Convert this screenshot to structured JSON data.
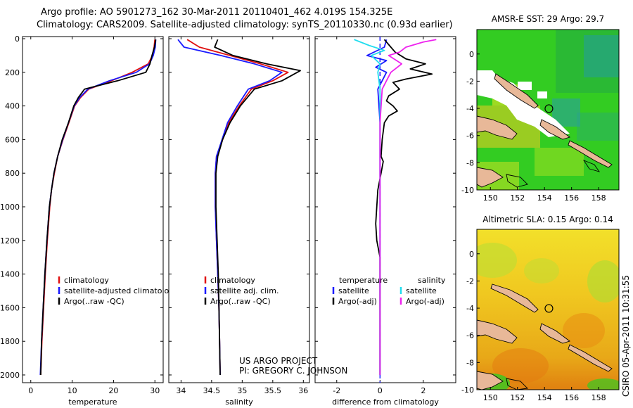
{
  "header": {
    "title_line1": "Argo profile: AO 5901273_162 30-Mar-2011 20110401_462 4.019S 154.325E",
    "title_line2": "Climatology: CARS2009. Satellite-adjusted climatology: synTS_20110330.nc (0.93d earlier)"
  },
  "footer": {
    "project_line1": "US ARGO PROJECT",
    "project_line2": "PI: GREGORY C. JOHNSON",
    "csiro_stamp": "CSIRO 05-Apr-2011 10:31:55"
  },
  "colors": {
    "climatology": "#e01010",
    "satellite": "#1a1aff",
    "argo": "#000000",
    "salinity_satellite": "#22ddee",
    "salinity_argo": "#ee22ee",
    "land": "#e8b898",
    "sea_green": "#33cc22",
    "sea_yellow": "#eecc22"
  },
  "chart_data": [
    {
      "type": "line",
      "id": "temperature",
      "xlabel": "temperature",
      "ylabel": "",
      "xlim": [
        -2,
        32
      ],
      "ylim": [
        2100,
        0
      ],
      "xticks": [
        0,
        10,
        20,
        30
      ],
      "yticks": [
        0,
        200,
        400,
        600,
        800,
        1000,
        1200,
        1400,
        1600,
        1800,
        2000
      ],
      "legend": [
        "climatology",
        "satellite-adjusted climatology",
        "Argo(..raw -QC)"
      ],
      "legend_placement": "lower-right",
      "series": [
        {
          "name": "climatology",
          "color": "#e01010",
          "points": [
            [
              30,
              5
            ],
            [
              29.8,
              50
            ],
            [
              29.4,
              100
            ],
            [
              28.4,
              150
            ],
            [
              24.5,
              200
            ],
            [
              19.5,
              250
            ],
            [
              14,
              300
            ],
            [
              12,
              350
            ],
            [
              10.6,
              400
            ],
            [
              9.2,
              500
            ],
            [
              7.8,
              600
            ],
            [
              6.5,
              700
            ],
            [
              5.7,
              800
            ],
            [
              5,
              900
            ],
            [
              4.6,
              1000
            ],
            [
              4,
              1200
            ],
            [
              3.5,
              1400
            ],
            [
              3.1,
              1600
            ],
            [
              2.7,
              1800
            ],
            [
              2.4,
              2000
            ]
          ]
        },
        {
          "name": "satellite-adjusted climatology",
          "color": "#1a1aff",
          "points": [
            [
              30.2,
              5
            ],
            [
              30.1,
              50
            ],
            [
              29.6,
              100
            ],
            [
              28.7,
              150
            ],
            [
              25.5,
              200
            ],
            [
              19,
              250
            ],
            [
              13.8,
              300
            ],
            [
              11.8,
              350
            ],
            [
              10.5,
              400
            ],
            [
              9.1,
              500
            ],
            [
              7.7,
              600
            ],
            [
              6.5,
              700
            ],
            [
              5.6,
              800
            ],
            [
              5,
              900
            ],
            [
              4.5,
              1000
            ],
            [
              3.9,
              1200
            ],
            [
              3.4,
              1400
            ],
            [
              3,
              1600
            ],
            [
              2.6,
              1800
            ],
            [
              2.3,
              2000
            ]
          ]
        },
        {
          "name": "Argo(..raw -QC)",
          "color": "#000000",
          "points": [
            [
              30.2,
              5
            ],
            [
              29.9,
              50
            ],
            [
              29.3,
              100
            ],
            [
              28.8,
              150
            ],
            [
              27.8,
              200
            ],
            [
              21,
              250
            ],
            [
              13,
              300
            ],
            [
              11.5,
              350
            ],
            [
              10.4,
              400
            ],
            [
              9.1,
              500
            ],
            [
              7.6,
              600
            ],
            [
              6.5,
              700
            ],
            [
              5.6,
              800
            ],
            [
              5,
              900
            ],
            [
              4.5,
              1000
            ],
            [
              3.9,
              1200
            ],
            [
              3.4,
              1400
            ],
            [
              3,
              1600
            ],
            [
              2.6,
              1800
            ],
            [
              2.4,
              2000
            ]
          ]
        }
      ]
    },
    {
      "type": "line",
      "id": "salinity",
      "xlabel": "salinity",
      "ylabel": "",
      "xlim": [
        33.8,
        36.1
      ],
      "ylim": [
        2100,
        0
      ],
      "xticks": [
        34,
        34.5,
        35,
        35.5,
        36
      ],
      "yticks": [
        0,
        200,
        400,
        600,
        800,
        1000,
        1200,
        1400,
        1600,
        1800,
        2000
      ],
      "legend": [
        "climatology",
        "satellite adj. clim.",
        "Argo(..raw -QC)"
      ],
      "legend_placement": "lower-right",
      "series": [
        {
          "name": "climatology",
          "color": "#e01010",
          "points": [
            [
              34.1,
              5
            ],
            [
              34.3,
              50
            ],
            [
              34.8,
              100
            ],
            [
              35.3,
              150
            ],
            [
              35.75,
              200
            ],
            [
              35.5,
              250
            ],
            [
              35.15,
              300
            ],
            [
              34.95,
              400
            ],
            [
              34.78,
              500
            ],
            [
              34.68,
              600
            ],
            [
              34.58,
              700
            ],
            [
              34.56,
              800
            ],
            [
              34.56,
              1000
            ],
            [
              34.58,
              1200
            ],
            [
              34.6,
              1400
            ],
            [
              34.62,
              1600
            ],
            [
              34.63,
              1800
            ],
            [
              34.64,
              2000
            ]
          ]
        },
        {
          "name": "satellite adj. clim.",
          "color": "#1a1aff",
          "points": [
            [
              33.95,
              5
            ],
            [
              34.05,
              50
            ],
            [
              34.65,
              100
            ],
            [
              35.2,
              150
            ],
            [
              35.65,
              200
            ],
            [
              35.45,
              250
            ],
            [
              35.1,
              300
            ],
            [
              34.92,
              400
            ],
            [
              34.76,
              500
            ],
            [
              34.67,
              600
            ],
            [
              34.58,
              700
            ],
            [
              34.56,
              800
            ],
            [
              34.56,
              1000
            ],
            [
              34.58,
              1200
            ],
            [
              34.6,
              1400
            ],
            [
              34.62,
              1600
            ],
            [
              34.63,
              1800
            ],
            [
              34.64,
              2000
            ]
          ]
        },
        {
          "name": "Argo(..raw -QC)",
          "color": "#000000",
          "points": [
            [
              34.6,
              5
            ],
            [
              34.55,
              50
            ],
            [
              34.85,
              100
            ],
            [
              35.4,
              150
            ],
            [
              35.95,
              190
            ],
            [
              35.65,
              250
            ],
            [
              35.2,
              300
            ],
            [
              34.97,
              400
            ],
            [
              34.8,
              500
            ],
            [
              34.68,
              600
            ],
            [
              34.6,
              700
            ],
            [
              34.57,
              800
            ],
            [
              34.57,
              1000
            ],
            [
              34.59,
              1200
            ],
            [
              34.61,
              1400
            ],
            [
              34.62,
              1600
            ],
            [
              34.63,
              1800
            ],
            [
              34.64,
              2000
            ]
          ]
        }
      ]
    },
    {
      "type": "line",
      "id": "difference",
      "xlabel": "difference from climatology",
      "ylabel": "",
      "xlim": [
        -3,
        3.5
      ],
      "ylim": [
        2100,
        0
      ],
      "xticks": [
        -2,
        0,
        2
      ],
      "yticks": [
        0,
        200,
        400,
        600,
        800,
        1000,
        1200,
        1400,
        1600,
        1800,
        2000
      ],
      "legend_groups": [
        {
          "heading": "temperature",
          "items": [
            "satellite",
            "Argo(-adj)"
          ]
        },
        {
          "heading": "salinity",
          "items": [
            "satellite",
            "Argo(-adj)"
          ]
        }
      ],
      "legend_placement": "lower-center",
      "series": [
        {
          "name": "temperature satellite",
          "color": "#1a1aff",
          "points": [
            [
              0.3,
              5
            ],
            [
              0.2,
              50
            ],
            [
              -0.6,
              100
            ],
            [
              0.3,
              130
            ],
            [
              -0.2,
              170
            ],
            [
              0.3,
              200
            ],
            [
              0.1,
              250
            ],
            [
              -0.1,
              300
            ],
            [
              -0.05,
              400
            ],
            [
              0,
              500
            ],
            [
              0,
              700
            ],
            [
              0,
              1000
            ],
            [
              0,
              1500
            ],
            [
              0,
              2000
            ]
          ]
        },
        {
          "name": "temperature Argo(-adj)",
          "color": "#000000",
          "points": [
            [
              0.2,
              5
            ],
            [
              0.5,
              50
            ],
            [
              0.7,
              80
            ],
            [
              1.2,
              120
            ],
            [
              2.1,
              150
            ],
            [
              1.4,
              180
            ],
            [
              2.4,
              210
            ],
            [
              1.2,
              240
            ],
            [
              0.6,
              260
            ],
            [
              0.9,
              300
            ],
            [
              0.4,
              340
            ],
            [
              0.3,
              370
            ],
            [
              0.6,
              400
            ],
            [
              0.8,
              430
            ],
            [
              0.4,
              460
            ],
            [
              0.2,
              500
            ],
            [
              0.1,
              600
            ],
            [
              0.05,
              700
            ],
            [
              0.15,
              730
            ],
            [
              0.05,
              800
            ],
            [
              -0.1,
              900
            ],
            [
              -0.15,
              1000
            ],
            [
              -0.2,
              1100
            ],
            [
              -0.15,
              1200
            ],
            [
              0,
              1300
            ],
            [
              0,
              2000
            ]
          ]
        },
        {
          "name": "salinity satellite",
          "color": "#22ddee",
          "points": [
            [
              -1.2,
              5
            ],
            [
              -0.5,
              40
            ],
            [
              0.2,
              70
            ],
            [
              -0.4,
              100
            ],
            [
              0,
              150
            ],
            [
              -0.1,
              200
            ],
            [
              0,
              300
            ],
            [
              0,
              600
            ],
            [
              0,
              1000
            ],
            [
              0,
              1500
            ],
            [
              0,
              2000
            ]
          ]
        },
        {
          "name": "salinity Argo(-adj)",
          "color": "#ee22ee",
          "points": [
            [
              2.6,
              5
            ],
            [
              2,
              20
            ],
            [
              1.2,
              50
            ],
            [
              0.9,
              80
            ],
            [
              0.4,
              100
            ],
            [
              1.0,
              150
            ],
            [
              0.5,
              200
            ],
            [
              0.3,
              250
            ],
            [
              0.1,
              300
            ],
            [
              0,
              500
            ],
            [
              0,
              2000
            ]
          ]
        }
      ]
    },
    {
      "type": "heatmap",
      "id": "sst-map",
      "title": "AMSR-E SST: 29 Argo: 29.7",
      "xticks": [
        150,
        152,
        154,
        156,
        158
      ],
      "yticks": [
        0,
        -2,
        -4,
        -6,
        -8,
        -10
      ],
      "xlim": [
        149,
        159.5
      ],
      "ylim": [
        -10,
        1.8
      ],
      "marker": {
        "lon": 154.325,
        "lat": -4.019
      }
    },
    {
      "type": "heatmap",
      "id": "sla-map",
      "title": "Altimetric SLA: 0.15 Argo: 0.14",
      "xticks": [
        150,
        152,
        154,
        156,
        158
      ],
      "yticks": [
        0,
        -2,
        -4,
        -6,
        -8,
        -10
      ],
      "xlim": [
        149,
        159.5
      ],
      "ylim": [
        -10,
        1.8
      ],
      "marker": {
        "lon": 154.325,
        "lat": -4.019
      }
    }
  ]
}
